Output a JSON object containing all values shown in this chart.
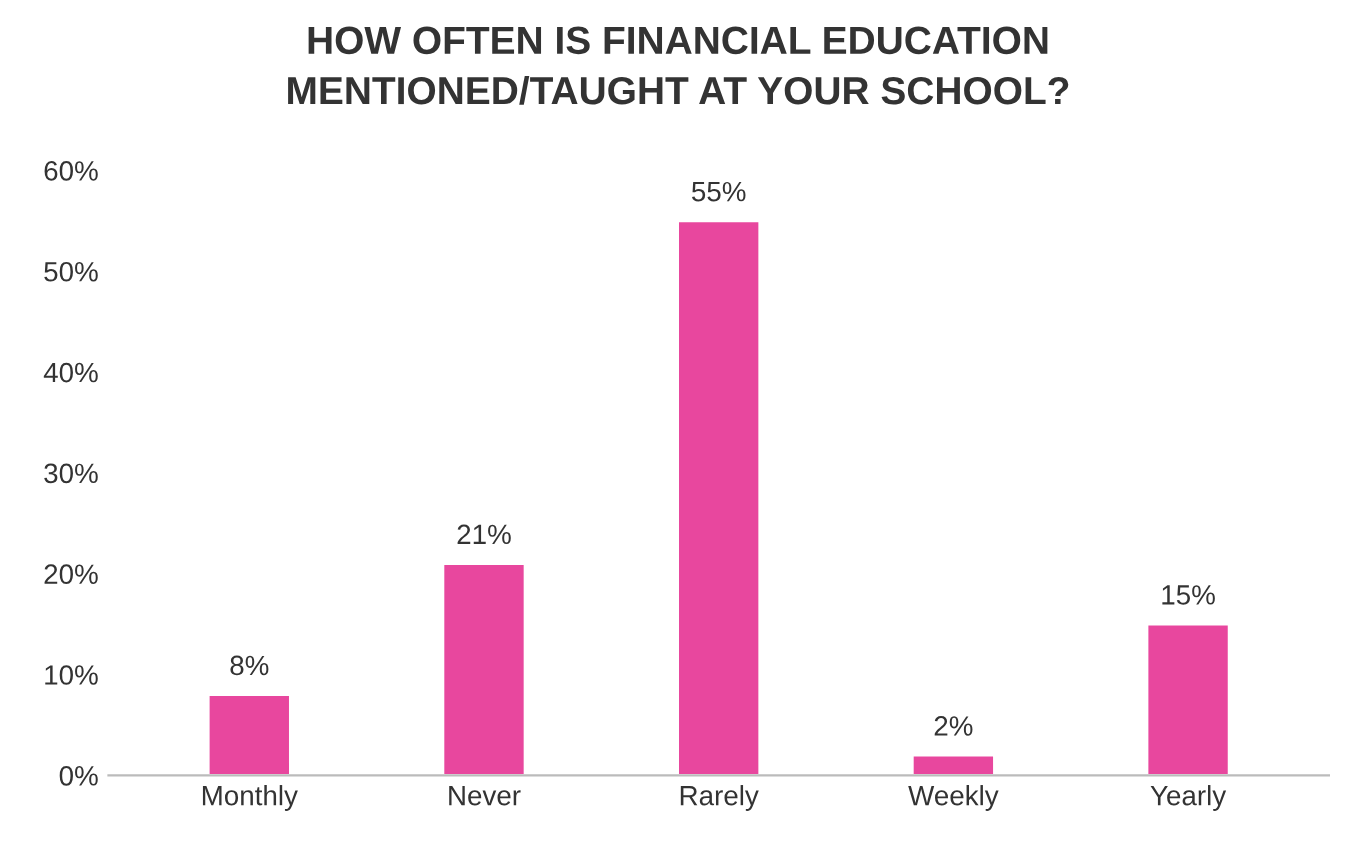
{
  "chart_data": {
    "type": "bar",
    "title": "HOW OFTEN IS FINANCIAL EDUCATION\nMENTIONED/TAUGHT AT YOUR SCHOOL?",
    "categories": [
      "Monthly",
      "Never",
      "Rarely",
      "Weekly",
      "Yearly"
    ],
    "values": [
      8,
      21,
      55,
      2,
      15
    ],
    "value_labels": [
      "8%",
      "21%",
      "55%",
      "2%",
      "15%"
    ],
    "color": "#e8479e",
    "ylim": [
      0,
      60
    ],
    "yticks": [
      {
        "value": 0,
        "label": "0%"
      },
      {
        "value": 10,
        "label": "10%"
      },
      {
        "value": 20,
        "label": "20%"
      },
      {
        "value": 30,
        "label": "30%"
      },
      {
        "value": 40,
        "label": "40%"
      },
      {
        "value": 50,
        "label": "50%"
      },
      {
        "value": 60,
        "label": "60%"
      }
    ],
    "grid": false,
    "legend": false
  }
}
